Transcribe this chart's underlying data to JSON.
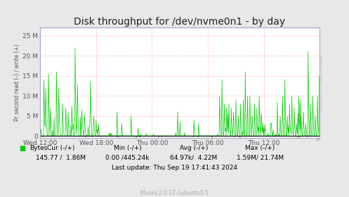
{
  "title": "Disk throughput for /dev/nvme0n1 - by day",
  "ylabel": "Pr second read (-) / write (+)",
  "ylabel_right": "RRDTOOL / TOBI OETIKER",
  "bg_color": "#e8e8e8",
  "plot_bg_color": "#ffffff",
  "grid_color": "#ff9999",
  "line_color": "#00cc00",
  "zero_line_color": "#000000",
  "ylim_min": -500000,
  "ylim_max": 27000000,
  "yticks": [
    0,
    5000000,
    10000000,
    15000000,
    20000000,
    25000000
  ],
  "ytick_labels": [
    "0",
    "5 M",
    "10 M",
    "15 M",
    "20 M",
    "25 M"
  ],
  "xtick_labels": [
    "Wed 12:00",
    "Wed 18:00",
    "Thu 00:00",
    "Thu 06:00",
    "Thu 12:00"
  ],
  "legend_label": "Bytes",
  "legend_color": "#00cc00",
  "cur_header": "Cur (-/+)",
  "cur_val": "145.77 /  1.86M",
  "min_header": "Min (-/+)",
  "min_val": "0.00 /445.24k",
  "avg_header": "Avg (-/+)",
  "avg_val": "64.97k/  4.22M",
  "max_header": "Max (-/+)",
  "max_val": "1.59M/ 21.74M",
  "last_update": "Last update: Thu Sep 19 17:41:43 2024",
  "munin_text": "Munin 2.0.37-1ubuntu0.1",
  "title_fontsize": 10,
  "axis_fontsize": 6.5,
  "stats_fontsize": 6.5,
  "border_color": "#aaaacc",
  "spine_color": "#aaaacc"
}
